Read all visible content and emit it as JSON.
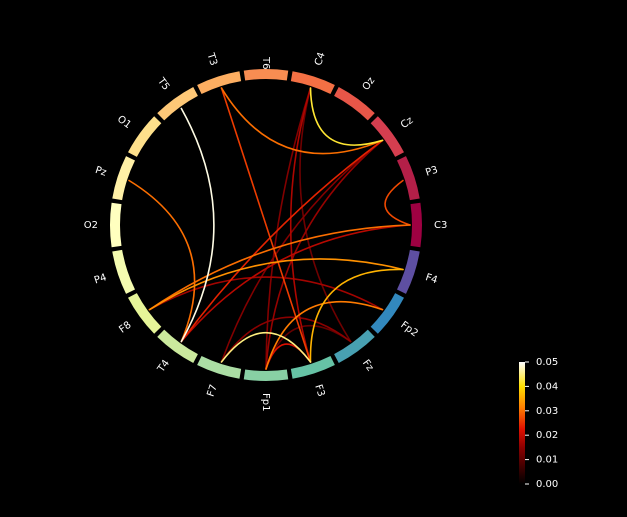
{
  "diagram": {
    "type": "connectivity-circle",
    "nodes": [
      {
        "label": "T6",
        "color": "#f88d52"
      },
      {
        "label": "C4",
        "color": "#f47044"
      },
      {
        "label": "Oz",
        "color": "#e75648"
      },
      {
        "label": "Cz",
        "color": "#d53e4f"
      },
      {
        "label": "P3",
        "color": "#b41f48"
      },
      {
        "label": "C3",
        "color": "#9e0142"
      },
      {
        "label": "F4",
        "color": "#5e4fa2"
      },
      {
        "label": "Fp2",
        "color": "#3288bd"
      },
      {
        "label": "Fz",
        "color": "#48a0b2"
      },
      {
        "label": "F3",
        "color": "#66c2a5"
      },
      {
        "label": "Fp1",
        "color": "#88d0a4"
      },
      {
        "label": "F7",
        "color": "#abdda4"
      },
      {
        "label": "T4",
        "color": "#cbe99d"
      },
      {
        "label": "F8",
        "color": "#e6f598"
      },
      {
        "label": "P4",
        "color": "#f4fbb0"
      },
      {
        "label": "O2",
        "color": "#ffffbf"
      },
      {
        "label": "Pz",
        "color": "#fff0a6"
      },
      {
        "label": "O1",
        "color": "#fee08b"
      },
      {
        "label": "T5",
        "color": "#fec877"
      },
      {
        "label": "T3",
        "color": "#fdae61"
      }
    ],
    "connections": [
      {
        "from": "C4",
        "to": "Cz",
        "value": 0.042
      },
      {
        "from": "C4",
        "to": "Fz",
        "value": 0.012
      },
      {
        "from": "C4",
        "to": "F3",
        "value": 0.018
      },
      {
        "from": "C4",
        "to": "Fp1",
        "value": 0.014
      },
      {
        "from": "T3",
        "to": "Cz",
        "value": 0.03
      },
      {
        "from": "T3",
        "to": "F3",
        "value": 0.026
      },
      {
        "from": "T5",
        "to": "T4",
        "value": 0.049
      },
      {
        "from": "Pz",
        "to": "T4",
        "value": 0.03
      },
      {
        "from": "Cz",
        "to": "T4",
        "value": 0.024
      },
      {
        "from": "Cz",
        "to": "Fp1",
        "value": 0.016
      },
      {
        "from": "Cz",
        "to": "F7",
        "value": 0.014
      },
      {
        "from": "C3",
        "to": "P3",
        "value": 0.027
      },
      {
        "from": "C3",
        "to": "F8",
        "value": 0.03
      },
      {
        "from": "C3",
        "to": "T4",
        "value": 0.019
      },
      {
        "from": "F4",
        "to": "F8",
        "value": 0.033
      },
      {
        "from": "F4",
        "to": "F3",
        "value": 0.036
      },
      {
        "from": "Fp2",
        "to": "Fp1",
        "value": 0.031
      },
      {
        "from": "Fp2",
        "to": "F8",
        "value": 0.017
      },
      {
        "from": "F3",
        "to": "F7",
        "value": 0.045
      },
      {
        "from": "F3",
        "to": "Fp1",
        "value": 0.022
      },
      {
        "from": "Fz",
        "to": "F7",
        "value": 0.015
      },
      {
        "from": "Fz",
        "to": "Fp1",
        "value": 0.011
      }
    ]
  },
  "colorbar": {
    "ticks": [
      "0.00",
      "0.01",
      "0.02",
      "0.03",
      "0.04",
      "0.05"
    ],
    "min": 0.0,
    "max": 0.05
  }
}
